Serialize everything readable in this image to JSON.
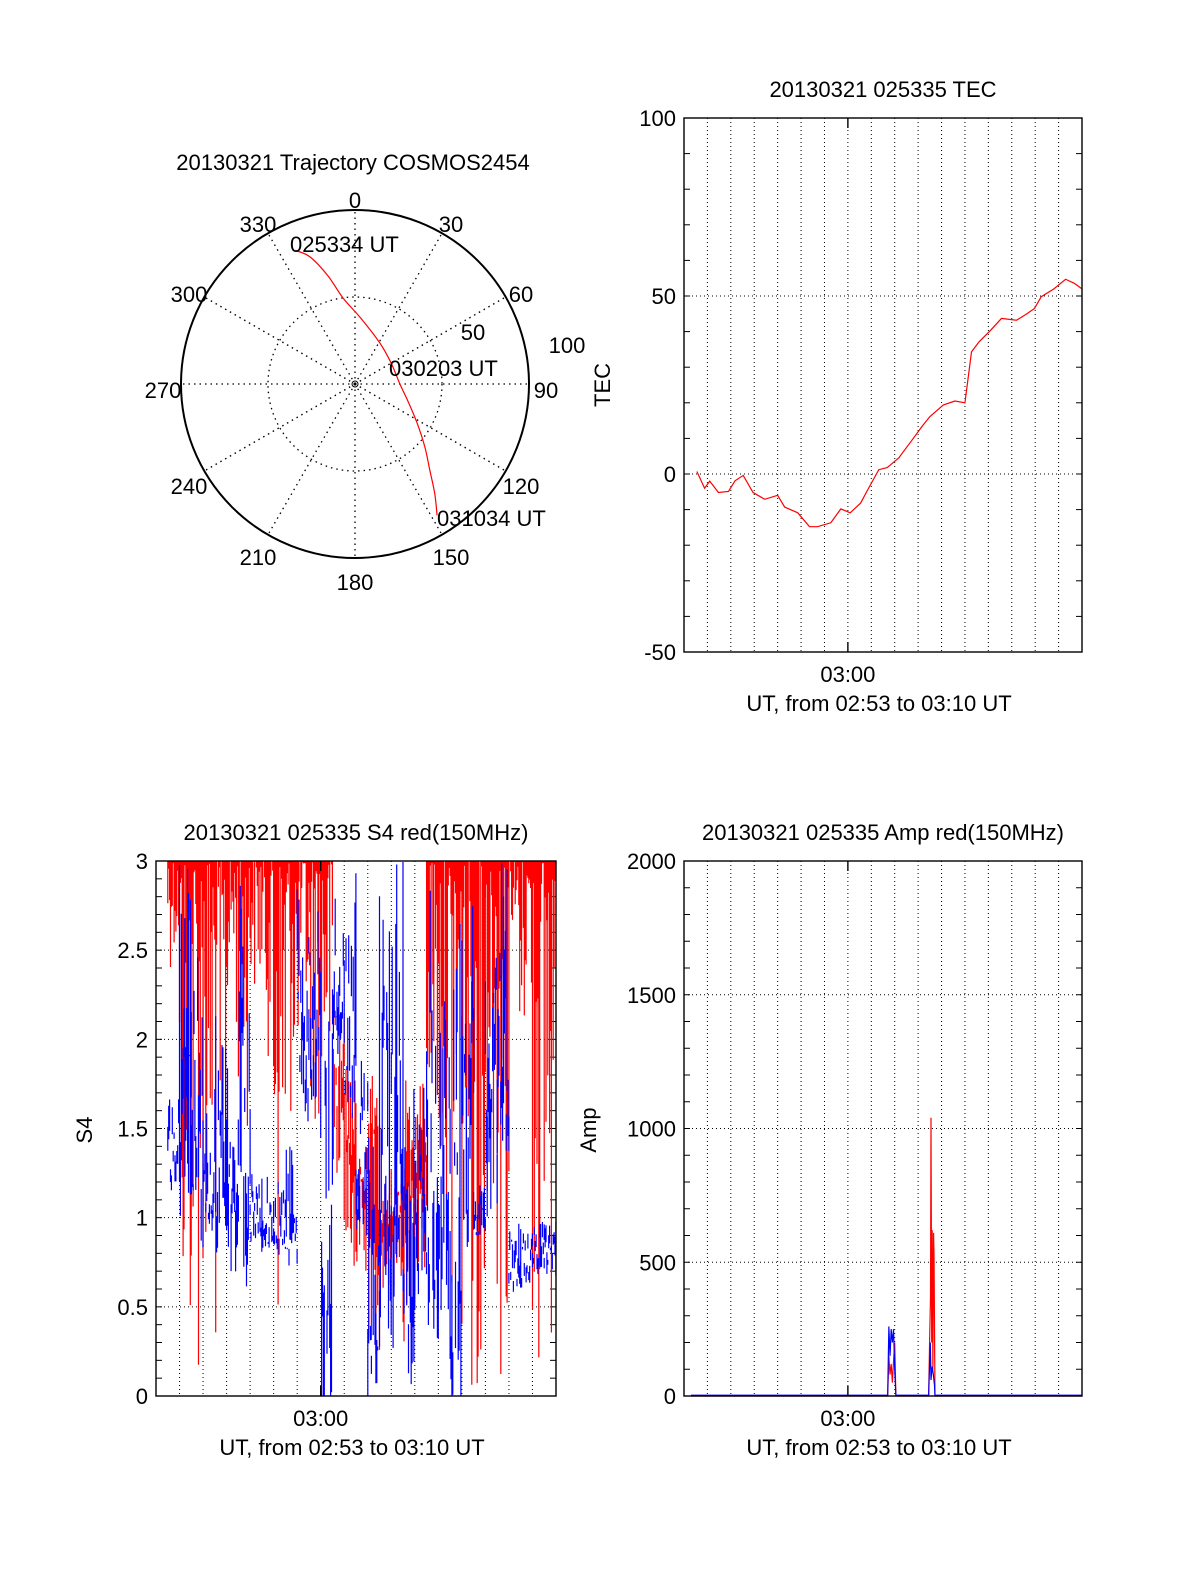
{
  "colors": {
    "red": "#ff0000",
    "blue": "#0000ff",
    "axis": "#000000"
  },
  "chart_data": [
    {
      "type": "polar",
      "title": "20130321 Trajectory COSMOS2454",
      "angle_labels": [
        "0",
        "30",
        "60",
        "90",
        "120",
        "150",
        "180",
        "210",
        "240",
        "270",
        "300",
        "330"
      ],
      "radial_labels": [
        "50",
        "100"
      ],
      "rlim": [
        0,
        100
      ],
      "trajectory_az_r": [
        [
          336,
          84
        ],
        [
          340.5,
          77.5
        ],
        [
          346,
          64
        ],
        [
          352,
          50
        ],
        [
          5,
          38
        ],
        [
          31,
          27.6
        ],
        [
          60,
          24
        ],
        [
          91,
          26
        ],
        [
          108,
          32
        ],
        [
          122,
          42
        ],
        [
          132,
          54
        ],
        [
          139,
          65.5
        ],
        [
          144,
          78
        ],
        [
          148,
          89
        ]
      ],
      "annotations": [
        "025334 UT",
        "030203 UT",
        "031034 UT"
      ]
    },
    {
      "type": "line",
      "title": "20130321 025335 TEC",
      "ylabel": "TEC",
      "xlabel": "UT, from 02:53 to 03:10 UT",
      "x_unit": "minutes after 02:53 UT",
      "xlim": [
        0,
        17
      ],
      "xtick_labels": [
        {
          "t": 7,
          "label": "03:00"
        }
      ],
      "ylim": [
        -50,
        100
      ],
      "ytick_labels": [
        "100",
        "50",
        "0",
        "-50"
      ],
      "ytick_values": [
        100,
        50,
        0,
        -50
      ],
      "grid": true,
      "series": [
        {
          "name": "TEC",
          "color": "red",
          "points": [
            [
              0.55,
              0.7
            ],
            [
              0.88,
              -4
            ],
            [
              1.1,
              -2
            ],
            [
              1.47,
              -5.2
            ],
            [
              1.9,
              -4.9
            ],
            [
              2.18,
              -1.9
            ],
            [
              2.53,
              -0.4
            ],
            [
              2.95,
              -5.2
            ],
            [
              3.45,
              -7.1
            ],
            [
              4.0,
              -6
            ],
            [
              4.3,
              -9.3
            ],
            [
              4.86,
              -10.9
            ],
            [
              5.36,
              -14.8
            ],
            [
              5.7,
              -14.8
            ],
            [
              6.27,
              -13.7
            ],
            [
              6.7,
              -9.8
            ],
            [
              7.1,
              -10.9
            ],
            [
              7.54,
              -8.2
            ],
            [
              7.9,
              -3.8
            ],
            [
              8.32,
              1.2
            ],
            [
              8.68,
              1.8
            ],
            [
              9.17,
              4.5
            ],
            [
              9.67,
              8.9
            ],
            [
              10.16,
              13.3
            ],
            [
              10.5,
              16.1
            ],
            [
              11.08,
              19.4
            ],
            [
              11.57,
              20.5
            ],
            [
              12.0,
              20
            ],
            [
              12.28,
              34.3
            ],
            [
              12.6,
              37.1
            ],
            [
              13.1,
              40.4
            ],
            [
              13.56,
              43.7
            ],
            [
              14.2,
              43.2
            ],
            [
              14.6,
              44.8
            ],
            [
              14.97,
              46.5
            ],
            [
              15.26,
              49.8
            ],
            [
              15.8,
              52
            ],
            [
              16.3,
              54.7
            ],
            [
              16.66,
              53.6
            ],
            [
              17,
              52
            ]
          ]
        }
      ]
    },
    {
      "type": "line",
      "title": "20130321 025335 S4 red(150MHz)",
      "ylabel": "S4",
      "xlabel": "UT, from 02:53 to 03:10 UT",
      "x_unit": "minutes after 02:53 UT",
      "xlim": [
        0,
        17
      ],
      "xtick_labels": [
        {
          "t": 7,
          "label": "03:00"
        }
      ],
      "ylim": [
        0,
        3
      ],
      "ytick_labels": [
        "3",
        "2.5",
        "2",
        "1.5",
        "1",
        "0.5",
        "0"
      ],
      "ytick_values": [
        3,
        2.5,
        2,
        1.5,
        1,
        0.5,
        0
      ],
      "grid": true,
      "envelope_note": "per 0.5-min bin: [t_start, low, high]",
      "series": [
        {
          "name": "red",
          "color": "red",
          "bins": [
            [
              0.5,
              2.4,
              3
            ],
            [
              1,
              0,
              3
            ],
            [
              1.5,
              0,
              3
            ],
            [
              2,
              0,
              3
            ],
            [
              2.5,
              0,
              3
            ],
            [
              3,
              2.0,
              3
            ],
            [
              3.5,
              1.5,
              3
            ],
            [
              4,
              2.2,
              3
            ],
            [
              4.5,
              1.9,
              3
            ],
            [
              5,
              0,
              3
            ],
            [
              5.5,
              1.5,
              3
            ],
            [
              6,
              1.8,
              3
            ],
            [
              6.5,
              1.5,
              3
            ],
            [
              7,
              1.3,
              3
            ],
            [
              7.5,
              1.0,
              2.2
            ],
            [
              8,
              0.7,
              1.9
            ],
            [
              8.5,
              0.7,
              1.4
            ],
            [
              9,
              0.15,
              1.8
            ],
            [
              9.5,
              0.6,
              1.3
            ],
            [
              10,
              0.6,
              1.2
            ],
            [
              10.5,
              0.3,
              1.8
            ],
            [
              11,
              0.7,
              1.8
            ],
            [
              11.5,
              1.3,
              3
            ],
            [
              12,
              1.0,
              3
            ],
            [
              12.5,
              0,
              3
            ],
            [
              13,
              0,
              3
            ],
            [
              13.5,
              0,
              3
            ],
            [
              14,
              1.0,
              3
            ],
            [
              14.5,
              0,
              3
            ],
            [
              15,
              2.0,
              3
            ],
            [
              15.5,
              2.0,
              3
            ],
            [
              16,
              0,
              3
            ],
            [
              16.5,
              0,
              3
            ]
          ]
        },
        {
          "name": "blue",
          "color": "blue",
          "bins": [
            [
              0.5,
              1.2,
              1.8
            ],
            [
              1,
              1.1,
              3
            ],
            [
              1.5,
              1.0,
              3
            ],
            [
              2,
              1.0,
              1.6
            ],
            [
              2.5,
              0.9,
              2.2
            ],
            [
              3,
              0.8,
              2.0
            ],
            [
              3.5,
              0.9,
              3
            ],
            [
              4,
              0.85,
              1.3
            ],
            [
              4.5,
              0.85,
              1.3
            ],
            [
              5,
              0.85,
              1.3
            ],
            [
              5.5,
              0.8,
              1.4
            ],
            [
              6,
              1.6,
              3
            ],
            [
              6.5,
              1.8,
              3
            ],
            [
              7,
              0,
              3
            ],
            [
              7.5,
              2.0,
              3
            ],
            [
              8,
              1.7,
              3
            ],
            [
              8.5,
              1.0,
              2.0
            ],
            [
              9,
              0.1,
              1.5
            ],
            [
              9.5,
              0.5,
              3
            ],
            [
              10,
              0.6,
              3
            ],
            [
              10.5,
              0.15,
              2
            ],
            [
              11,
              0.6,
              1.8
            ],
            [
              11.5,
              0.6,
              3
            ],
            [
              12,
              0.7,
              3
            ],
            [
              12.5,
              0,
              3
            ],
            [
              13,
              0.85,
              3
            ],
            [
              13.5,
              0.9,
              1.2
            ],
            [
              14,
              1.2,
              3
            ],
            [
              14.5,
              1.5,
              3
            ],
            [
              15,
              0.6,
              1.0
            ],
            [
              15.5,
              0.65,
              0.95
            ],
            [
              16,
              0.7,
              1.0
            ],
            [
              16.5,
              0.65,
              1.0
            ]
          ]
        }
      ]
    },
    {
      "type": "line",
      "title": "20130321 025335 Amp red(150MHz)",
      "ylabel": "Amp",
      "xlabel": "UT, from 02:53 to 03:10 UT",
      "x_unit": "minutes after 02:53 UT",
      "xlim": [
        0,
        17
      ],
      "xtick_labels": [
        {
          "t": 7,
          "label": "03:00"
        }
      ],
      "ylim": [
        0,
        2000
      ],
      "ytick_labels": [
        "2000",
        "1500",
        "1000",
        "500",
        "0"
      ],
      "ytick_values": [
        2000,
        1500,
        1000,
        500,
        0
      ],
      "grid": true,
      "series": [
        {
          "name": "red",
          "color": "red",
          "points": [
            [
              0.3,
              0
            ],
            [
              8.7,
              0
            ],
            [
              8.75,
              150
            ],
            [
              8.8,
              80
            ],
            [
              8.85,
              120
            ],
            [
              8.9,
              50
            ],
            [
              8.95,
              130
            ],
            [
              9.0,
              200
            ],
            [
              9.05,
              0
            ],
            [
              10.45,
              0
            ],
            [
              10.5,
              250
            ],
            [
              10.53,
              370
            ],
            [
              10.55,
              1040
            ],
            [
              10.58,
              200
            ],
            [
              10.6,
              620
            ],
            [
              10.63,
              100
            ],
            [
              10.66,
              610
            ],
            [
              10.68,
              520
            ],
            [
              10.72,
              0
            ],
            [
              17,
              0
            ]
          ]
        },
        {
          "name": "blue",
          "color": "blue",
          "points": [
            [
              0.3,
              3
            ],
            [
              8.7,
              3
            ],
            [
              8.75,
              260
            ],
            [
              8.8,
              150
            ],
            [
              8.85,
              250
            ],
            [
              8.9,
              200
            ],
            [
              8.95,
              250
            ],
            [
              9.0,
              100
            ],
            [
              9.05,
              3
            ],
            [
              10.45,
              3
            ],
            [
              10.52,
              200
            ],
            [
              10.55,
              60
            ],
            [
              10.6,
              110
            ],
            [
              10.65,
              80
            ],
            [
              10.7,
              40
            ],
            [
              10.72,
              3
            ],
            [
              17,
              3
            ]
          ]
        }
      ]
    }
  ]
}
